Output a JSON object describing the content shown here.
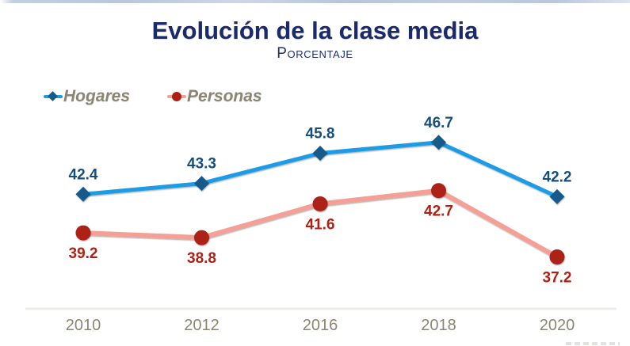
{
  "page": {
    "title": "Evolución de la clase media",
    "subtitle": "Porcentaje"
  },
  "colors": {
    "title_text": "#1b2a6b",
    "subtitle_text": "#1e2f6e",
    "legend_text": "#8b8573",
    "axis_text": "#8b8674",
    "axis_line": "#efedea"
  },
  "chart_data": {
    "type": "line",
    "title": "Evolución de la clase media",
    "subtitle": "Porcentaje",
    "xlabel": "",
    "ylabel": "",
    "categories": [
      "2010",
      "2012",
      "2016",
      "2018",
      "2020"
    ],
    "series": [
      {
        "name": "Hogares",
        "values": [
          42.4,
          43.3,
          45.8,
          46.7,
          42.2
        ],
        "line_color": "#1d9ce4",
        "marker": "diamond",
        "marker_color": "#175a8c",
        "label_color": "#174f7c"
      },
      {
        "name": "Personas",
        "values": [
          39.2,
          38.8,
          41.6,
          42.7,
          37.2
        ],
        "line_color": "#f4a096",
        "marker": "circle",
        "marker_color": "#ad2113",
        "label_color": "#b22013"
      }
    ],
    "ylim": [
      33,
      49
    ],
    "grid": false,
    "data_labels": true,
    "legend_position": "top-left",
    "x_spacing": "categorical-even"
  }
}
